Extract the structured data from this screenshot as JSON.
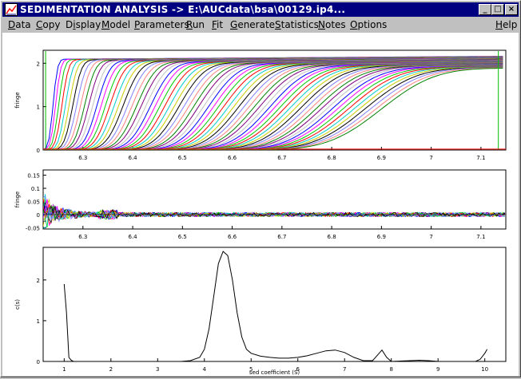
{
  "window": {
    "title": "SEDIMENTATION ANALYSIS -> E:\\AUCdata\\bsa\\00129.ip4...",
    "min_glyph": "_",
    "max_glyph": "□",
    "close_glyph": "×"
  },
  "menu": [
    {
      "label": "Data",
      "key": "D"
    },
    {
      "label": "Copy",
      "key": "C"
    },
    {
      "label": "Display",
      "key": "i"
    },
    {
      "label": "Model",
      "key": "M"
    },
    {
      "label": "Parameters",
      "key": "P"
    },
    {
      "label": "Run",
      "key": "R"
    },
    {
      "label": "Fit",
      "key": "F"
    },
    {
      "label": "Generate",
      "key": "G"
    },
    {
      "label": "Statistics",
      "key": "S"
    },
    {
      "label": "Notes",
      "key": "N"
    },
    {
      "label": "Options",
      "key": "O"
    },
    {
      "label": "Help",
      "key": "H"
    }
  ],
  "chart_data": [
    {
      "type": "line",
      "name": "raw-data",
      "ylabel": "fringe",
      "xlim": [
        6.22,
        7.15
      ],
      "ylim": [
        0,
        2.3
      ],
      "xticks": [
        "6.3",
        "6.4",
        "6.5",
        "6.6",
        "6.7",
        "6.8",
        "6.9",
        "7",
        "7.1"
      ],
      "xtick_values": [
        6.3,
        6.4,
        6.5,
        6.6,
        6.7,
        6.8,
        6.9,
        7.0,
        7.1
      ],
      "yticks": [
        "0",
        "1",
        "2"
      ],
      "ytick_values": [
        0,
        1,
        2
      ],
      "curve_model": {
        "count": 70,
        "plateau_start": 2.08,
        "plateau_end": 1.85,
        "boundary_start": 6.24,
        "boundary_end": 6.9,
        "width_start": 0.01,
        "width_end": 0.12
      },
      "colors": [
        "#0000ff",
        "#ff00ff",
        "#00cc00",
        "#ff0000",
        "#00cccc",
        "#cccc00",
        "#000000",
        "#8080ff",
        "#ff8080",
        "#008000",
        "#800080",
        "#c0c0c0"
      ]
    },
    {
      "type": "line",
      "name": "residuals",
      "ylabel": "fringe",
      "xlim": [
        6.22,
        7.15
      ],
      "ylim": [
        -0.055,
        0.17
      ],
      "xticks": [
        "6.3",
        "6.4",
        "6.5",
        "6.6",
        "6.7",
        "6.8",
        "6.9",
        "7",
        "7.1"
      ],
      "xtick_values": [
        6.3,
        6.4,
        6.5,
        6.6,
        6.7,
        6.8,
        6.9,
        7.0,
        7.1
      ],
      "yticks": [
        "0.15",
        "0.1",
        "0.05",
        "0",
        "-0.05"
      ],
      "ytick_values": [
        0.15,
        0.1,
        0.05,
        0,
        -0.05
      ]
    },
    {
      "type": "line",
      "name": "distribution",
      "xlabel": "sed coefficient (S)",
      "ylabel": "c(s)",
      "xlim": [
        0.55,
        10.45
      ],
      "ylim": [
        0,
        2.8
      ],
      "xticks": [
        "1",
        "2",
        "3",
        "4",
        "5",
        "6",
        "7",
        "8",
        "9",
        "10"
      ],
      "xtick_values": [
        1,
        2,
        3,
        4,
        5,
        6,
        7,
        8,
        9,
        10
      ],
      "yticks": [
        "0",
        "1",
        "2"
      ],
      "ytick_values": [
        0,
        1,
        2
      ],
      "x": [
        1.0,
        1.05,
        1.1,
        1.15,
        1.2,
        1.3,
        1.4,
        1.6,
        2.0,
        2.5,
        3.0,
        3.5,
        3.7,
        3.9,
        4.0,
        4.1,
        4.2,
        4.3,
        4.4,
        4.5,
        4.6,
        4.7,
        4.8,
        4.9,
        5.0,
        5.2,
        5.4,
        5.6,
        5.8,
        6.0,
        6.2,
        6.4,
        6.6,
        6.8,
        7.0,
        7.2,
        7.4,
        7.6,
        7.7,
        7.8,
        7.9,
        8.0,
        8.2,
        8.4,
        8.6,
        8.8,
        9.0,
        9.4,
        9.8,
        9.9,
        10.0,
        10.05
      ],
      "values": [
        1.9,
        1.2,
        0.1,
        0.03,
        0.0,
        0.0,
        0.0,
        0.0,
        0.0,
        0.0,
        0.0,
        0.0,
        0.02,
        0.1,
        0.3,
        0.8,
        1.6,
        2.4,
        2.7,
        2.6,
        2.0,
        1.2,
        0.6,
        0.3,
        0.2,
        0.13,
        0.1,
        0.08,
        0.08,
        0.1,
        0.14,
        0.2,
        0.26,
        0.28,
        0.22,
        0.1,
        0.02,
        0.02,
        0.15,
        0.28,
        0.1,
        0.0,
        0.01,
        0.02,
        0.03,
        0.02,
        0.0,
        0.0,
        0.0,
        0.05,
        0.2,
        0.3
      ]
    }
  ]
}
